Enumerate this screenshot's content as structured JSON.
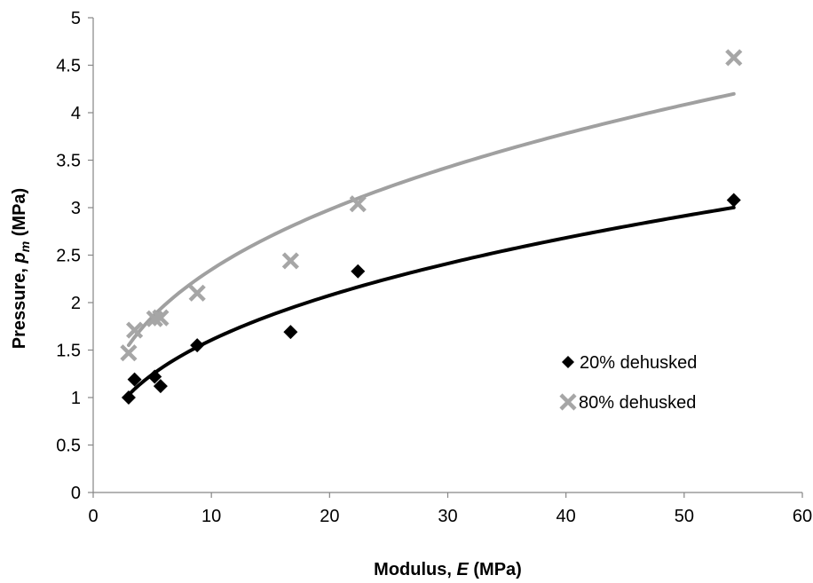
{
  "chart_data": {
    "type": "scatter",
    "title": "",
    "xlabel": "Modulus, E (MPa)",
    "xlabel_parts": {
      "pre": "Modulus, ",
      "var": "E",
      "post": " (MPa)"
    },
    "ylabel": "Pressure, p_m (MPa)",
    "ylabel_parts": {
      "pre": "Pressure, ",
      "var": "p",
      "sub": "m",
      "post": " (MPa)"
    },
    "xlim": [
      0,
      60
    ],
    "ylim": [
      0,
      5
    ],
    "xticks": [
      0,
      10,
      20,
      30,
      40,
      50,
      60
    ],
    "yticks": [
      0,
      0.5,
      1,
      1.5,
      2,
      2.5,
      3,
      3.5,
      4,
      4.5,
      5
    ],
    "xtick_labels": [
      "0",
      "10",
      "20",
      "30",
      "40",
      "50",
      "60"
    ],
    "ytick_labels": [
      "0",
      "0.5",
      "1",
      "1.5",
      "2",
      "2.5",
      "3",
      "3.5",
      "4",
      "4.5",
      "5"
    ],
    "grid": false,
    "legend_position": "right",
    "series": [
      {
        "name": "20% dehusked",
        "marker": "diamond",
        "color": "#000000",
        "trend_color": "#000000",
        "points": [
          {
            "x": 3.0,
            "y": 1.0
          },
          {
            "x": 3.5,
            "y": 1.19
          },
          {
            "x": 5.2,
            "y": 1.22
          },
          {
            "x": 5.7,
            "y": 1.12
          },
          {
            "x": 8.8,
            "y": 1.55
          },
          {
            "x": 16.7,
            "y": 1.69
          },
          {
            "x": 22.4,
            "y": 2.33
          },
          {
            "x": 54.2,
            "y": 3.08
          }
        ],
        "trend": {
          "type": "power",
          "a": 0.685,
          "b": 0.37,
          "x_range": [
            3.0,
            54.2
          ]
        }
      },
      {
        "name": "80% dehusked",
        "marker": "x",
        "color": "#a6a6a6",
        "trend_color": "#a0a0a0",
        "points": [
          {
            "x": 3.0,
            "y": 1.47
          },
          {
            "x": 3.5,
            "y": 1.71
          },
          {
            "x": 5.2,
            "y": 1.83
          },
          {
            "x": 5.7,
            "y": 1.84
          },
          {
            "x": 8.8,
            "y": 2.1
          },
          {
            "x": 16.7,
            "y": 2.44
          },
          {
            "x": 22.4,
            "y": 3.04
          },
          {
            "x": 54.2,
            "y": 4.58
          }
        ],
        "trend": {
          "type": "power",
          "a": 1.063,
          "b": 0.344,
          "x_range": [
            3.0,
            54.2
          ]
        }
      }
    ]
  }
}
